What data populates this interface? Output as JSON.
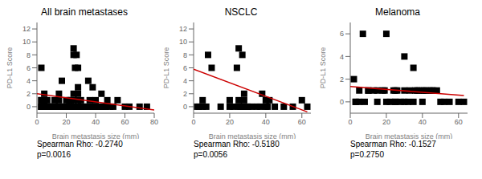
{
  "chart_data": [
    {
      "type": "scatter",
      "title": "All brain metastases",
      "xlabel": "Brain metastasis size (mm)",
      "ylabel": "PD-L1 Score",
      "xlim": [
        0,
        80
      ],
      "ylim": [
        -1,
        13
      ],
      "xticks": [
        0,
        20,
        40,
        60,
        80
      ],
      "yticks": [
        0,
        2,
        4,
        6,
        8,
        10,
        12
      ],
      "annotations": [
        "Spearman Rho: -0.2740",
        "p=0.0016"
      ],
      "series": [
        {
          "type": "scatter",
          "color": "#000000",
          "marker": "square",
          "x": [
            3,
            3,
            3,
            3,
            3,
            3,
            4,
            4,
            5,
            5,
            5,
            5,
            5,
            6,
            6,
            7,
            7,
            8,
            8,
            9,
            9,
            10,
            10,
            11,
            11,
            12,
            12,
            13,
            14,
            15,
            15,
            15,
            16,
            17,
            17,
            18,
            19,
            20,
            20,
            20,
            21,
            21,
            22,
            22,
            22,
            23,
            24,
            24,
            25,
            25,
            25,
            25,
            26,
            26,
            26,
            27,
            27,
            27,
            28,
            28,
            28,
            28,
            29,
            30,
            30,
            31,
            32,
            33,
            35,
            35,
            36,
            37,
            38,
            38,
            40,
            40,
            41,
            42,
            43,
            44,
            45,
            46,
            47,
            48,
            50,
            52,
            55,
            60,
            63,
            70,
            75
          ],
          "values": [
            0,
            0,
            0,
            1,
            1,
            6,
            0,
            0,
            0,
            0,
            1,
            1,
            2,
            0,
            0,
            0,
            1,
            0,
            0,
            0,
            0,
            0,
            0,
            0,
            0,
            0,
            1,
            0,
            0,
            0,
            1,
            2,
            0,
            0,
            4,
            0,
            0,
            0,
            0,
            1,
            0,
            0,
            0,
            0,
            1,
            1,
            0,
            0,
            1,
            2,
            8,
            9,
            0,
            0,
            6,
            0,
            0,
            8,
            1,
            2,
            3,
            6,
            0,
            0,
            1,
            0,
            0,
            0,
            0,
            4,
            1,
            0,
            0,
            3,
            0,
            1,
            0,
            0,
            0,
            2,
            0,
            0,
            0,
            1,
            0,
            0,
            1,
            0,
            0,
            0,
            0
          ]
        },
        {
          "type": "line",
          "color": "#cc0000",
          "x": [
            0,
            80
          ],
          "values": [
            2.0,
            -0.5
          ]
        }
      ]
    },
    {
      "type": "scatter",
      "title": "NSCLC",
      "xlabel": "Brain metastasis size (mm)",
      "ylabel": "PD-L1 Score",
      "xlim": [
        0,
        65
      ],
      "ylim": [
        -1,
        13
      ],
      "xticks": [
        0,
        20,
        40,
        60
      ],
      "yticks": [
        0,
        2,
        4,
        6,
        8,
        10,
        12
      ],
      "annotations": [
        "Spearman Rho: -0.5180",
        "p=0.0056"
      ],
      "series": [
        {
          "type": "scatter",
          "color": "#000000",
          "marker": "square",
          "x": [
            2,
            3,
            5,
            5,
            7,
            8,
            10,
            15,
            20,
            20,
            22,
            24,
            25,
            25,
            25,
            26,
            26,
            27,
            27,
            28,
            28,
            28,
            30,
            30,
            32,
            35,
            37,
            38,
            40,
            40,
            41,
            42,
            45,
            50,
            55,
            60,
            63
          ],
          "values": [
            0,
            0,
            0,
            1,
            0,
            8,
            6,
            0,
            0,
            1,
            0,
            6,
            0,
            1,
            9,
            0,
            0,
            8,
            0,
            1,
            2,
            0,
            0,
            0,
            0,
            0,
            0,
            2,
            0,
            1,
            0,
            1,
            0,
            0,
            0,
            1,
            0
          ]
        },
        {
          "type": "line",
          "color": "#cc0000",
          "x": [
            0,
            63
          ],
          "values": [
            5.8,
            -0.8
          ]
        }
      ]
    },
    {
      "type": "scatter",
      "title": "Melanoma",
      "xlabel": "Brain metastasis size (mm)",
      "ylabel": "PD-L1 Score",
      "xlim": [
        0,
        65
      ],
      "ylim": [
        -1,
        7
      ],
      "xticks": [
        0,
        20,
        40,
        60
      ],
      "yticks": [
        0,
        2,
        4,
        6
      ],
      "annotations": [
        "Spearman Rho: -0.1527",
        "p=0.2750"
      ],
      "series": [
        {
          "type": "scatter",
          "color": "#000000",
          "marker": "square",
          "x": [
            2,
            3,
            3,
            5,
            5,
            7,
            8,
            10,
            10,
            13,
            15,
            15,
            18,
            19,
            20,
            20,
            22,
            24,
            25,
            25,
            25,
            26,
            28,
            30,
            30,
            30,
            32,
            33,
            35,
            35,
            36,
            37,
            38,
            40,
            40,
            41,
            42,
            44,
            45,
            46,
            48,
            50,
            52,
            55,
            60,
            63
          ],
          "values": [
            2,
            0,
            0,
            0,
            1,
            6,
            0,
            1,
            1,
            1,
            0,
            1,
            1,
            1,
            0,
            6,
            0,
            1,
            0,
            0,
            1,
            1,
            0,
            1,
            0,
            4,
            0,
            1,
            0,
            3,
            1,
            1,
            1,
            0,
            1,
            1,
            1,
            1,
            1,
            1,
            1,
            0,
            0,
            0,
            0,
            0
          ]
        },
        {
          "type": "line",
          "color": "#cc0000",
          "x": [
            0,
            63
          ],
          "values": [
            1.35,
            0.55
          ]
        }
      ]
    }
  ]
}
